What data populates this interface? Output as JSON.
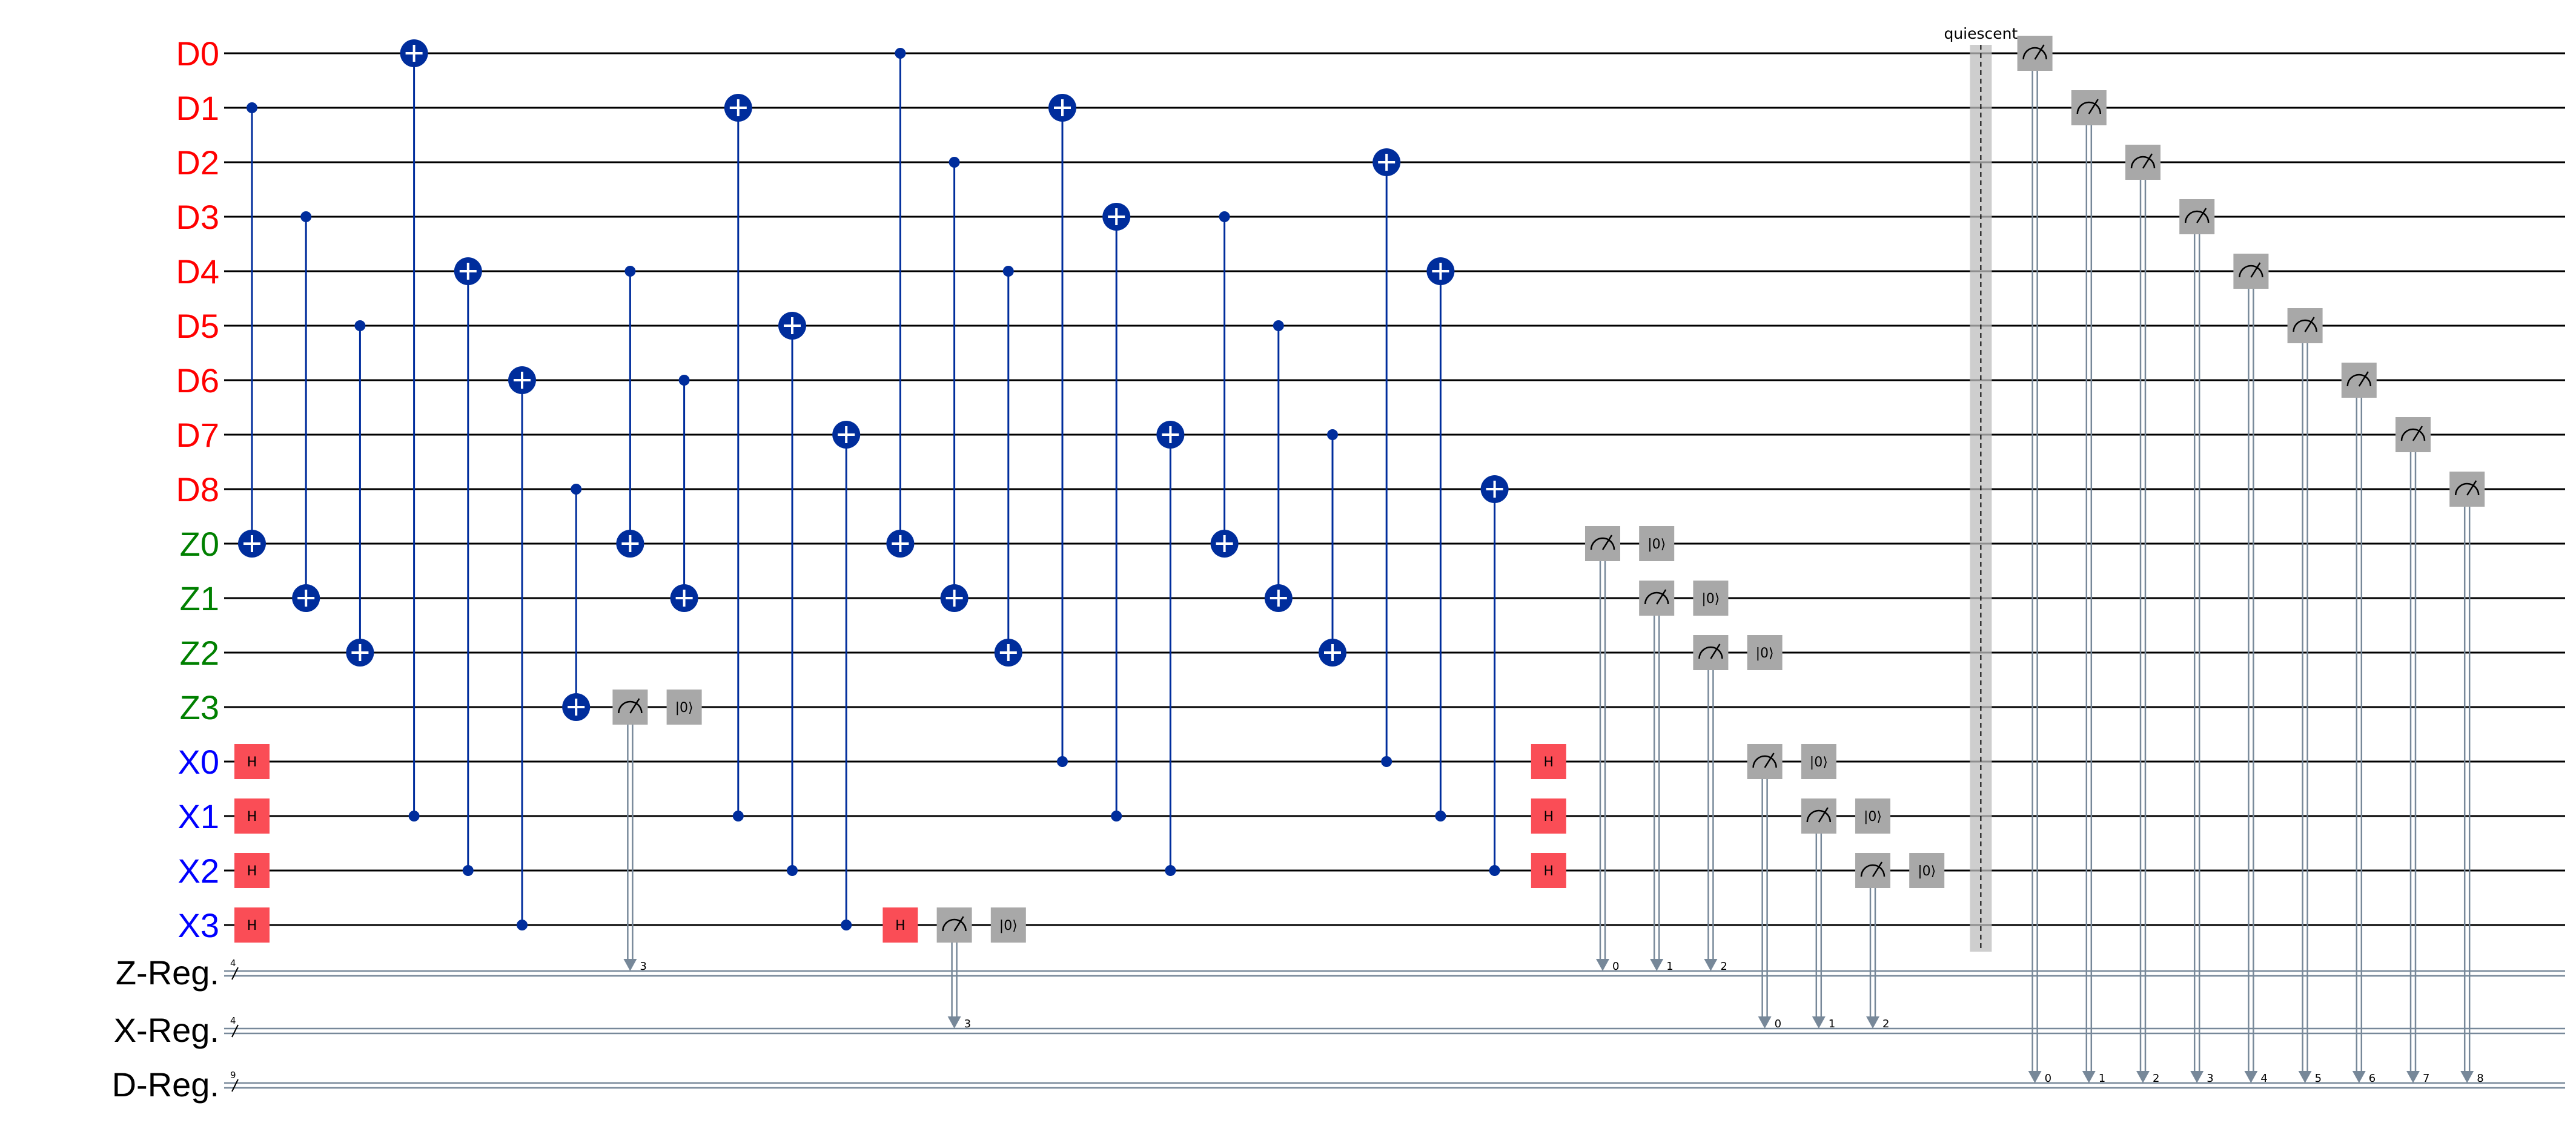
{
  "qubits": [
    {
      "label": "D0",
      "color": "#ff0000"
    },
    {
      "label": "D1",
      "color": "#ff0000"
    },
    {
      "label": "D2",
      "color": "#ff0000"
    },
    {
      "label": "D3",
      "color": "#ff0000"
    },
    {
      "label": "D4",
      "color": "#ff0000"
    },
    {
      "label": "D5",
      "color": "#ff0000"
    },
    {
      "label": "D6",
      "color": "#ff0000"
    },
    {
      "label": "D7",
      "color": "#ff0000"
    },
    {
      "label": "D8",
      "color": "#ff0000"
    },
    {
      "label": "Z0",
      "color": "#008000"
    },
    {
      "label": "Z1",
      "color": "#008000"
    },
    {
      "label": "Z2",
      "color": "#008000"
    },
    {
      "label": "Z3",
      "color": "#008000"
    },
    {
      "label": "X0",
      "color": "#0000ff"
    },
    {
      "label": "X1",
      "color": "#0000ff"
    },
    {
      "label": "X2",
      "color": "#0000ff"
    },
    {
      "label": "X3",
      "color": "#0000ff"
    }
  ],
  "cregs": [
    {
      "label": "Z-Reg.",
      "size": "4"
    },
    {
      "label": "X-Reg.",
      "size": "4"
    },
    {
      "label": "D-Reg.",
      "size": "9"
    }
  ],
  "barrier_label": "quiescent",
  "gate_text": {
    "hadamard": "H",
    "reset": "|0⟩"
  },
  "colors": {
    "cnot": "#002d9c",
    "hadamard": "#fa4d56",
    "measure": "#a8a8a8",
    "wire": "#000000",
    "classical": "#778899"
  },
  "operations": [
    {
      "type": "h",
      "qubit": 13,
      "col": 0
    },
    {
      "type": "h",
      "qubit": 14,
      "col": 0
    },
    {
      "type": "h",
      "qubit": 15,
      "col": 0
    },
    {
      "type": "h",
      "qubit": 16,
      "col": 0
    },
    {
      "type": "cx",
      "control": 1,
      "target": 9,
      "col": 0
    },
    {
      "type": "cx",
      "control": 3,
      "target": 10,
      "col": 1
    },
    {
      "type": "cx",
      "control": 5,
      "target": 11,
      "col": 2
    },
    {
      "type": "cx",
      "control": 14,
      "target": 0,
      "col": 3
    },
    {
      "type": "cx",
      "control": 15,
      "target": 4,
      "col": 4
    },
    {
      "type": "cx",
      "control": 16,
      "target": 6,
      "col": 5
    },
    {
      "type": "cx",
      "control": 8,
      "target": 12,
      "col": 6
    },
    {
      "type": "cx",
      "control": 4,
      "target": 9,
      "col": 7
    },
    {
      "type": "cx",
      "control": 6,
      "target": 10,
      "col": 8
    },
    {
      "type": "measure",
      "qubit": 12,
      "reg": "Z-Reg.",
      "bit": "3",
      "col": 7
    },
    {
      "type": "reset",
      "qubit": 12,
      "col": 8
    },
    {
      "type": "cx",
      "control": 14,
      "target": 1,
      "col": 9
    },
    {
      "type": "cx",
      "control": 15,
      "target": 5,
      "col": 10
    },
    {
      "type": "cx",
      "control": 16,
      "target": 7,
      "col": 11
    },
    {
      "type": "cx",
      "control": 0,
      "target": 9,
      "col": 12
    },
    {
      "type": "h",
      "qubit": 16,
      "col": 12
    },
    {
      "type": "cx",
      "control": 2,
      "target": 10,
      "col": 13
    },
    {
      "type": "measure",
      "qubit": 16,
      "reg": "X-Reg.",
      "bit": "3",
      "col": 13
    },
    {
      "type": "cx",
      "control": 4,
      "target": 11,
      "col": 14
    },
    {
      "type": "reset",
      "qubit": 16,
      "col": 14
    },
    {
      "type": "cx",
      "control": 13,
      "target": 1,
      "col": 15
    },
    {
      "type": "cx",
      "control": 14,
      "target": 3,
      "col": 16
    },
    {
      "type": "cx",
      "control": 15,
      "target": 7,
      "col": 17
    },
    {
      "type": "cx",
      "control": 3,
      "target": 9,
      "col": 18
    },
    {
      "type": "cx",
      "control": 5,
      "target": 10,
      "col": 19
    },
    {
      "type": "cx",
      "control": 7,
      "target": 11,
      "col": 20
    },
    {
      "type": "cx",
      "control": 13,
      "target": 2,
      "col": 21
    },
    {
      "type": "cx",
      "control": 14,
      "target": 4,
      "col": 22
    },
    {
      "type": "cx",
      "control": 15,
      "target": 8,
      "col": 23
    },
    {
      "type": "h",
      "qubit": 13,
      "col": 24
    },
    {
      "type": "h",
      "qubit": 14,
      "col": 24
    },
    {
      "type": "h",
      "qubit": 15,
      "col": 24
    },
    {
      "type": "measure",
      "qubit": 9,
      "reg": "Z-Reg.",
      "bit": "0",
      "col": 25
    },
    {
      "type": "reset",
      "qubit": 9,
      "col": 26
    },
    {
      "type": "measure",
      "qubit": 10,
      "reg": "Z-Reg.",
      "bit": "1",
      "col": 26
    },
    {
      "type": "reset",
      "qubit": 10,
      "col": 27
    },
    {
      "type": "measure",
      "qubit": 11,
      "reg": "Z-Reg.",
      "bit": "2",
      "col": 27
    },
    {
      "type": "reset",
      "qubit": 11,
      "col": 28
    },
    {
      "type": "measure",
      "qubit": 13,
      "reg": "X-Reg.",
      "bit": "0",
      "col": 28
    },
    {
      "type": "reset",
      "qubit": 13,
      "col": 29
    },
    {
      "type": "measure",
      "qubit": 14,
      "reg": "X-Reg.",
      "bit": "1",
      "col": 29
    },
    {
      "type": "reset",
      "qubit": 14,
      "col": 30
    },
    {
      "type": "measure",
      "qubit": 15,
      "reg": "X-Reg.",
      "bit": "2",
      "col": 30
    },
    {
      "type": "reset",
      "qubit": 15,
      "col": 31
    },
    {
      "type": "barrier",
      "col": 32
    },
    {
      "type": "measure",
      "qubit": 0,
      "reg": "D-Reg.",
      "bit": "0",
      "col": 33
    },
    {
      "type": "measure",
      "qubit": 1,
      "reg": "D-Reg.",
      "bit": "1",
      "col": 34
    },
    {
      "type": "measure",
      "qubit": 2,
      "reg": "D-Reg.",
      "bit": "2",
      "col": 35
    },
    {
      "type": "measure",
      "qubit": 3,
      "reg": "D-Reg.",
      "bit": "3",
      "col": 36
    },
    {
      "type": "measure",
      "qubit": 4,
      "reg": "D-Reg.",
      "bit": "4",
      "col": 37
    },
    {
      "type": "measure",
      "qubit": 5,
      "reg": "D-Reg.",
      "bit": "5",
      "col": 38
    },
    {
      "type": "measure",
      "qubit": 6,
      "reg": "D-Reg.",
      "bit": "6",
      "col": 39
    },
    {
      "type": "measure",
      "qubit": 7,
      "reg": "D-Reg.",
      "bit": "7",
      "col": 40
    },
    {
      "type": "measure",
      "qubit": 8,
      "reg": "D-Reg.",
      "bit": "8",
      "col": 41
    }
  ]
}
